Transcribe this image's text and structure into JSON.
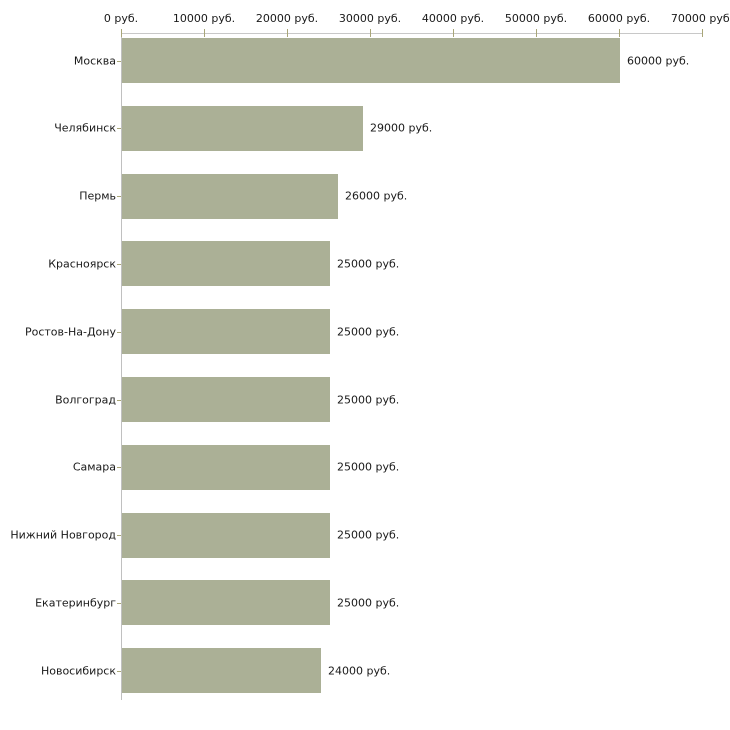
{
  "chart_data": {
    "type": "bar",
    "orientation": "horizontal",
    "title": "",
    "xlabel": "",
    "ylabel": "",
    "unit": "руб.",
    "grid": false,
    "legend": "none",
    "xlim": [
      0,
      70000
    ],
    "x_ticks": [
      0,
      10000,
      20000,
      30000,
      40000,
      50000,
      60000,
      70000
    ],
    "x_tick_labels": [
      "0 руб.",
      "10000 руб.",
      "20000 руб.",
      "30000 руб.",
      "40000 руб.",
      "50000 руб.",
      "60000 руб.",
      "70000 руб."
    ],
    "categories": [
      "Москва",
      "Челябинск",
      "Пермь",
      "Красноярск",
      "Ростов-На-Дону",
      "Волгоград",
      "Самара",
      "Нижний Новгород",
      "Екатеринбург",
      "Новосибирск"
    ],
    "values": [
      60000,
      29000,
      26000,
      25000,
      25000,
      25000,
      25000,
      25000,
      25000,
      24000
    ],
    "value_labels": [
      "60000 руб.",
      "29000 руб.",
      "26000 руб.",
      "25000 руб.",
      "25000 руб.",
      "25000 руб.",
      "25000 руб.",
      "25000 руб.",
      "25000 руб.",
      "24000 руб."
    ],
    "colors": {
      "bar": "#abb096",
      "top_axis_line": "#c8c8c8",
      "left_axis_line": "#c0c0c0",
      "tick": "#a9a678",
      "text": "#1a1a1a",
      "background": "#ffffff"
    }
  }
}
